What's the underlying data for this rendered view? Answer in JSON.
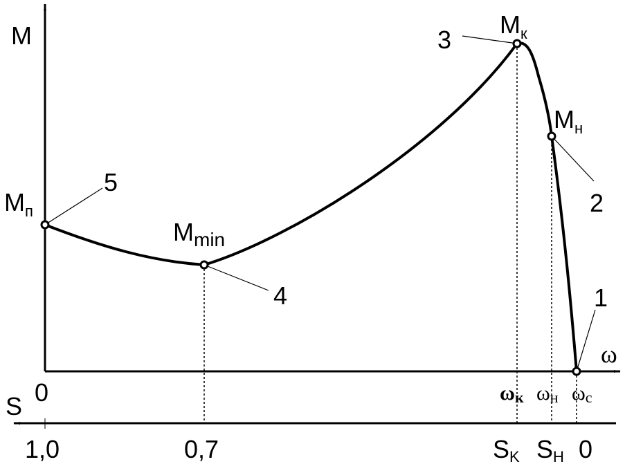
{
  "axes": {
    "y_label": "M",
    "x_label": "ω",
    "s_label": "S"
  },
  "points": [
    {
      "number": "1"
    },
    {
      "number": "2",
      "label": {
        "main": "M",
        "sub": "н"
      }
    },
    {
      "number": "3",
      "label": {
        "main": "M",
        "sub": "к"
      }
    },
    {
      "number": "4",
      "label": {
        "main": "M",
        "sub": "min"
      }
    },
    {
      "number": "5",
      "label": {
        "main": "M",
        "sub": "п"
      }
    }
  ],
  "omega_ticks": [
    {
      "main": "0"
    },
    {
      "main": "ω",
      "sub": "к"
    },
    {
      "main": "ω",
      "sub": "н"
    },
    {
      "main": "ω",
      "sub": "c"
    }
  ],
  "s_ticks": [
    {
      "main": "1,0"
    },
    {
      "main": "0,7"
    },
    {
      "main": "S",
      "sub": "K"
    },
    {
      "main": "S",
      "sub": "H"
    },
    {
      "main": "0"
    }
  ]
}
